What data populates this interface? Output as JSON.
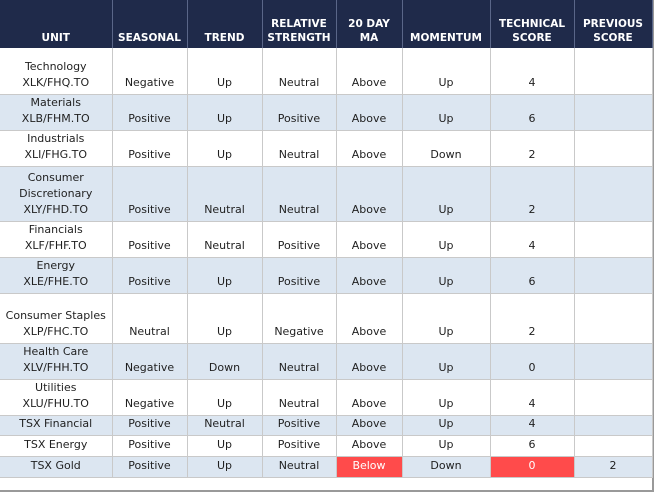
{
  "table": {
    "header": [
      "UNIT",
      "SEASONAL",
      "TREND",
      "RELATIVE STRENGTH",
      "20 DAY MA",
      "MOMENTUM",
      "TECHNICAL SCORE",
      "PREVIOUS SCORE"
    ],
    "rows": [
      [
        [
          "Technology",
          "XLK/FHQ.TO"
        ],
        "Negative",
        "Up",
        "Neutral",
        "Above",
        "Up",
        4,
        null
      ],
      [
        [
          "Materials",
          "XLB/FHM.TO"
        ],
        "Positive",
        "Up",
        "Positive",
        "Above",
        "Up",
        6,
        null
      ],
      [
        [
          "Industrials",
          "XLI/FHG.TO"
        ],
        "Positive",
        "Up",
        "Neutral",
        "Above",
        "Down",
        2,
        null
      ],
      [
        [
          "Consumer Discretionary",
          "XLY/FHD.TO"
        ],
        "Positive",
        "Neutral",
        "Neutral",
        "Above",
        "Up",
        2,
        null
      ],
      [
        [
          "Financials",
          "XLF/FHF.TO"
        ],
        "Positive",
        "Neutral",
        "Positive",
        "Above",
        "Up",
        4,
        null
      ],
      [
        [
          "Energy",
          "XLE/FHE.TO"
        ],
        "Positive",
        "Up",
        "Positive",
        "Above",
        "Up",
        6,
        null
      ],
      [
        [
          "Consumer Staples",
          "XLP/FHC.TO"
        ],
        "Neutral",
        "Up",
        "Negative",
        "Above",
        "Up",
        2,
        null
      ],
      [
        [
          "Health Care",
          "XLV/FHH.TO"
        ],
        "Negative",
        "Down",
        "Neutral",
        "Above",
        "Up",
        0,
        null
      ],
      [
        [
          "Utilities",
          "XLU/FHU.TO"
        ],
        "Negative",
        "Up",
        "Neutral",
        "Above",
        "Up",
        4,
        null
      ],
      [
        [
          "TSX Financial"
        ],
        "Positive",
        "Neutral",
        "Positive",
        "Above",
        "Up",
        4,
        null
      ],
      [
        [
          "TSX Energy"
        ],
        "Positive",
        "Up",
        "Positive",
        "Above",
        "Up",
        6,
        null
      ],
      [
        [
          "TSX Gold"
        ],
        "Positive",
        "Up",
        "Neutral",
        "Below",
        "Down",
        0,
        2
      ]
    ]
  }
}
